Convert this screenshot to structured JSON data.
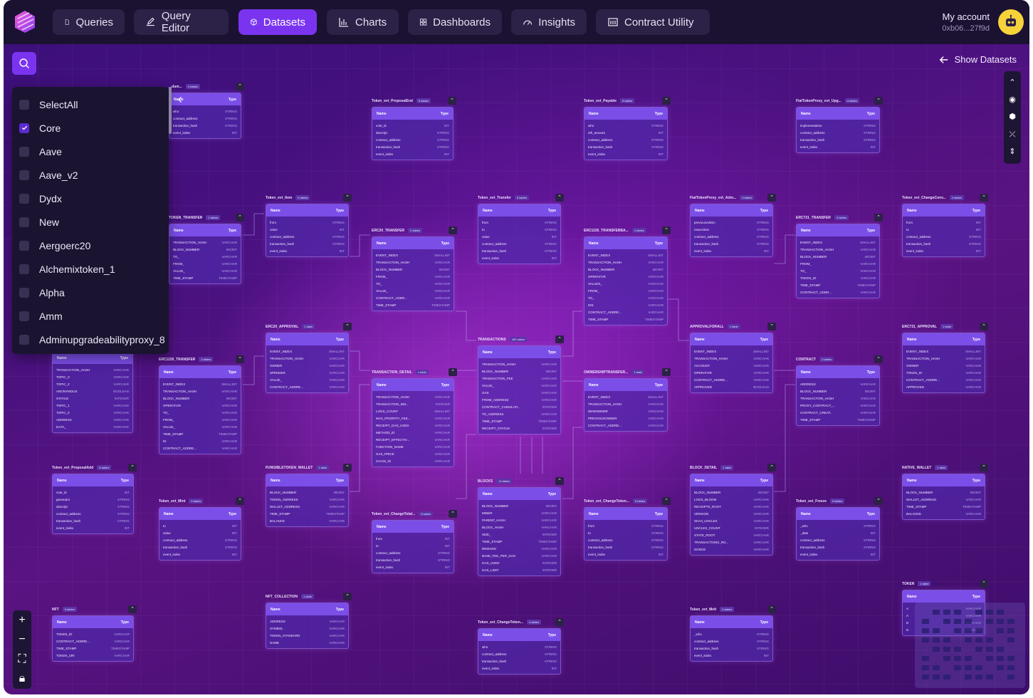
{
  "nav": {
    "tabs": [
      {
        "label": "Queries",
        "icon": "file-icon"
      },
      {
        "label": "Query Editor",
        "icon": "edit-icon"
      },
      {
        "label": "Datasets",
        "icon": "cube-icon",
        "active": true
      },
      {
        "label": "Charts",
        "icon": "bar-chart-icon"
      },
      {
        "label": "Dashboards",
        "icon": "grid-icon"
      },
      {
        "label": "Insights",
        "icon": "gauge-icon"
      },
      {
        "label": "Contract Utility",
        "icon": "contract-icon"
      }
    ],
    "account_label": "My account",
    "account_address": "0xb06...27f9d"
  },
  "filter": {
    "items": [
      {
        "label": "SelectAll",
        "checked": false
      },
      {
        "label": "Core",
        "checked": true
      },
      {
        "label": "Aave",
        "checked": false
      },
      {
        "label": "Aave_v2",
        "checked": false
      },
      {
        "label": "Dydx",
        "checked": false
      },
      {
        "label": "New",
        "checked": false
      },
      {
        "label": "Aergoerc20",
        "checked": false
      },
      {
        "label": "Alchemixtoken_1",
        "checked": false
      },
      {
        "label": "Alpha",
        "checked": false
      },
      {
        "label": "Amm",
        "checked": false
      },
      {
        "label": "Adminupgradeabilityproxy_8",
        "checked": false
      }
    ]
  },
  "show_datasets_label": "Show Datasets",
  "table_header": {
    "name": "Name",
    "type": "Type"
  },
  "tables": [
    {
      "id": "t1",
      "title": "Token_evt_ProposalEnd",
      "count": "5 tables",
      "rows": [
        [
          "vote_id",
          "INT"
        ],
        [
          "descript",
          "STRING"
        ],
        [
          "contract_address",
          "STRING"
        ],
        [
          "transaction_hash",
          "STRING"
        ],
        [
          "event_index",
          "INT"
        ]
      ]
    },
    {
      "id": "t2",
      "title": "Token_evt_Payable",
      "count": "5 tables",
      "rows": [
        [
          "who",
          "STRING"
        ],
        [
          "eth_amount",
          "INT"
        ],
        [
          "contract_address",
          "STRING"
        ],
        [
          "transaction_hash",
          "STRING"
        ],
        [
          "event_index",
          "INT"
        ]
      ]
    },
    {
      "id": "t3",
      "title": "FiatTokenProxy_evt_Upg...",
      "count": "4 tables",
      "rows": [
        [
          "implementation",
          "STRING"
        ],
        [
          "contract_address",
          "STRING"
        ],
        [
          "transaction_hash",
          "STRING"
        ],
        [
          "event_index",
          "INT"
        ]
      ]
    },
    {
      "id": "t4",
      "title": "Token_evt_Item",
      "count": "5 tables",
      "rows": [
        [
          "from",
          "STRING"
        ],
        [
          "value",
          "INT"
        ],
        [
          "contract_address",
          "STRING"
        ],
        [
          "transaction_hash",
          "STRING"
        ],
        [
          "event_index",
          "INT"
        ]
      ]
    },
    {
      "id": "t5",
      "title": "Token_evt_Transfer",
      "count": "6 tables",
      "rows": [
        [
          "from",
          "STRING"
        ],
        [
          "to",
          "STRING"
        ],
        [
          "value",
          "INT"
        ],
        [
          "contract_address",
          "STRING"
        ],
        [
          "transaction_hash",
          "STRING"
        ],
        [
          "event_index",
          "INT"
        ]
      ]
    },
    {
      "id": "t6",
      "title": "FiatTokenProxy_evt_Adm...",
      "count": "3 tables",
      "rows": [
        [
          "previousAdmin",
          "STRING"
        ],
        [
          "newAdmin",
          "STRING"
        ],
        [
          "contract_address",
          "STRING"
        ],
        [
          "transaction_hash",
          "STRING"
        ],
        [
          "event_index",
          "INT"
        ]
      ]
    },
    {
      "id": "t7",
      "title": "Token_evt_ChangeConv...",
      "count": "2 tables",
      "rows": [
        [
          "from",
          "INT"
        ],
        [
          "to",
          "INT"
        ],
        [
          "contract_address",
          "STRING"
        ],
        [
          "transaction_hash",
          "STRING"
        ],
        [
          "event_index",
          "INT"
        ]
      ]
    },
    {
      "id": "t8",
      "title": "TOKEN_TRANSFER",
      "count": "2 tables",
      "rows": [
        [
          "TRANSACTION_HASH",
          "VARCHAR"
        ],
        [
          "BLOCK_NUMBER",
          "BIGINT"
        ],
        [
          "TO_",
          "VARCHAR"
        ],
        [
          "FROM_",
          "VARCHAR"
        ],
        [
          "VALUE_",
          "VARCHAR"
        ],
        [
          "TIME_STAMP",
          "TIMESTAMP"
        ]
      ]
    },
    {
      "id": "t9",
      "title": "ERC20_TRANSFER",
      "count": "2 tables",
      "rows": [
        [
          "EVENT_INDEX",
          "SMALLINT"
        ],
        [
          "TRANSACTION_HASH",
          "VARCHAR"
        ],
        [
          "BLOCK_NUMBER",
          "BIGINT"
        ],
        [
          "FROM_",
          "VARCHAR"
        ],
        [
          "TO_",
          "VARCHAR"
        ],
        [
          "VALUE_",
          "VARCHAR"
        ],
        [
          "CONTRACT_ADDR...",
          "VARCHAR"
        ],
        [
          "TIME_STAMP",
          "TIMESTAMP"
        ]
      ]
    },
    {
      "id": "t10",
      "title": "ERC1155_TRANSFERBA...",
      "count": "2 tables",
      "rows": [
        [
          "EVENT_INDEX",
          "SMALLINT"
        ],
        [
          "TRANSACTION_HASH",
          "VARCHAR"
        ],
        [
          "BLOCK_NUMBER",
          "BIGINT"
        ],
        [
          "OPERATOR",
          "VARCHAR"
        ],
        [
          "VALUES_",
          "VARCHAR"
        ],
        [
          "FROM_",
          "VARCHAR"
        ],
        [
          "TO_",
          "VARCHAR"
        ],
        [
          "IDS",
          "VARCHAR"
        ],
        [
          "CONTRACT_ADDRE...",
          "VARCHAR"
        ],
        [
          "TIME_STAMP",
          "TIMESTAMP"
        ]
      ]
    },
    {
      "id": "t11",
      "title": "ERC721_TRANSFER",
      "count": "2 tables",
      "rows": [
        [
          "EVENT_INDEX",
          "SMALLINT"
        ],
        [
          "TRANSACTION_HASH",
          "VARCHAR"
        ],
        [
          "BLOCK_NUMBER",
          "BIGINT"
        ],
        [
          "FROM_",
          "VARCHAR"
        ],
        [
          "TO_",
          "VARCHAR"
        ],
        [
          "TOKEN_ID",
          "VARCHAR"
        ],
        [
          "TIME_STAMP",
          "TIMESTAMP"
        ],
        [
          "CONTRACT_ADDR...",
          "VARCHAR"
        ]
      ]
    },
    {
      "id": "t12",
      "title": "ERC20_APPROVAL",
      "count": "1 table",
      "rows": [
        [
          "EVENT_INDEX",
          "SMALLINT"
        ],
        [
          "TRANSACTION_HASH",
          "VARCHAR"
        ],
        [
          "OWNER",
          "VARCHAR"
        ],
        [
          "SPENDER",
          "VARCHAR"
        ],
        [
          "VALUE_",
          "VARCHAR"
        ],
        [
          "CONTRACT_ADDRE...",
          "VARCHAR"
        ]
      ]
    },
    {
      "id": "t13",
      "title": "TRANSACTIONS",
      "count": "450 tables",
      "rows": [
        [
          "TRANSACTION_HASH",
          "VARCHAR"
        ],
        [
          "BLOCK_NUMBER",
          "BIGINT"
        ],
        [
          "TRANSACTION_FEE",
          "VARCHAR"
        ],
        [
          "VALUE_",
          "VARCHAR"
        ],
        [
          "GAS",
          "VARCHAR"
        ],
        [
          "FROM_ADDRESS",
          "VARCHAR"
        ],
        [
          "CONTRACT_CUMULATI...",
          "INTEGER"
        ],
        [
          "TO_ADDRESS",
          "VARCHAR"
        ],
        [
          "TIME_STAMP",
          "TIMESTAMP"
        ],
        [
          "RECEIPT_STATUS",
          "INTEGER"
        ]
      ]
    },
    {
      "id": "t14",
      "title": "APPROVALFORALL",
      "count": "1 table",
      "rows": [
        [
          "EVENT_INDEX",
          "SMALLINT"
        ],
        [
          "TRANSACTION_HASH",
          "VARCHAR"
        ],
        [
          "ACCOUNT",
          "VARCHAR"
        ],
        [
          "OPERATOR",
          "VARCHAR"
        ],
        [
          "CONTRACT_ADDRE...",
          "VARCHAR"
        ],
        [
          "APPROVED",
          "BOOLEAN"
        ]
      ]
    },
    {
      "id": "t15",
      "title": "ERC721_APPROVAL",
      "count": "1 table",
      "rows": [
        [
          "EVENT_INDEX",
          "SMALLINT"
        ],
        [
          "TRANSACTION_HASH",
          "VARCHAR"
        ],
        [
          "OWNER",
          "VARCHAR"
        ],
        [
          "TOKEN_ID",
          "VARCHAR"
        ],
        [
          "CONTRACT_ADDRE...",
          "VARCHAR"
        ],
        [
          "APPROVED",
          "VARCHAR"
        ]
      ]
    },
    {
      "id": "t16",
      "title": "ERC1155_TRANSFER",
      "count": "2 tables",
      "rows": [
        [
          "EVENT_INDEX",
          "SMALLINT"
        ],
        [
          "TRANSACTION_HASH",
          "VARCHAR"
        ],
        [
          "BLOCK_NUMBER",
          "BIGINT"
        ],
        [
          "OPERATOR",
          "VARCHAR"
        ],
        [
          "TO_",
          "VARCHAR"
        ],
        [
          "FROM_",
          "VARCHAR"
        ],
        [
          "VALUE_",
          "VARCHAR"
        ],
        [
          "TIME_STAMP",
          "TIMESTAMP"
        ],
        [
          "ID",
          "VARCHAR"
        ],
        [
          "CONTRACT_ADDRE...",
          "VARCHAR"
        ]
      ]
    },
    {
      "id": "t17",
      "title": "TRANSACTION_DETAIL",
      "count": "1 table",
      "rows": [
        [
          "TRANSACTION_HASH",
          "VARCHAR"
        ],
        [
          "TRANSACTION_IND...",
          "INTEGER"
        ],
        [
          "LOGS_COUNT",
          "SMALLINT"
        ],
        [
          "MAX_PRIORITY_FEE...",
          "VARCHAR"
        ],
        [
          "RECEIPT_GAS_USED",
          "VARCHAR"
        ],
        [
          "METHOD_ID",
          "VARCHAR"
        ],
        [
          "RECEIPT_EFFECTIV...",
          "VARCHAR"
        ],
        [
          "FUNCTION_NAME",
          "VARCHAR"
        ],
        [
          "GAS_PRICE",
          "VARCHAR"
        ],
        [
          "CHAIN_ID",
          "VARCHAR"
        ]
      ]
    },
    {
      "id": "t18",
      "title": "OWNERSHIPTRANSFER...",
      "count": "1 table",
      "rows": [
        [
          "EVENT_INDEX",
          "SMALLINT"
        ],
        [
          "TRANSACTION_HASH",
          "VARCHAR"
        ],
        [
          "NEWOWNER",
          "VARCHAR"
        ],
        [
          "PREVIOUSOWNER",
          "VARCHAR"
        ],
        [
          "CONTRACT_ADDRE...",
          "VARCHAR"
        ]
      ]
    },
    {
      "id": "t19",
      "title": "CONTRACT",
      "count": "2 tables",
      "rows": [
        [
          "ADDRESS",
          "VARCHAR"
        ],
        [
          "BLOCK_NUMBER",
          "BIGINT"
        ],
        [
          "TRANSACTION_HASH",
          "VARCHAR"
        ],
        [
          "PROXY_CONTRACT_...",
          "VARCHAR"
        ],
        [
          "CONTRACT_CREAT...",
          "VARCHAR"
        ],
        [
          "TIME_STAMP",
          "TIMESTAMP"
        ]
      ]
    },
    {
      "id": "t20",
      "title": "",
      "count": "",
      "rows": [
        [
          "TRANSACTION_HASH",
          "VARCHAR"
        ],
        [
          "TOPIC_3",
          "VARCHAR"
        ],
        [
          "TOPIC_2",
          "VARCHAR"
        ],
        [
          "ANONYMOUS",
          "BOOLEAN"
        ],
        [
          "STATUS",
          "INTEGER"
        ],
        [
          "TOPIC_1",
          "VARCHAR"
        ],
        [
          "TOPIC_0",
          "VARCHAR"
        ],
        [
          "ADDRESS",
          "VARCHAR"
        ],
        [
          "DATA_",
          "VARCHAR"
        ]
      ]
    },
    {
      "id": "t21",
      "title": "Token_evt_ProposalAdd",
      "count": "6 tables",
      "rows": [
        [
          "vote_id",
          "INT"
        ],
        [
          "generator",
          "STRING"
        ],
        [
          "descript",
          "STRING"
        ],
        [
          "contract_address",
          "STRING"
        ],
        [
          "transaction_hash",
          "STRING"
        ],
        [
          "event_index",
          "INT"
        ]
      ]
    },
    {
      "id": "t22",
      "title": "FUNGIBLETOKEN_WALLET",
      "count": "1 table",
      "rows": [
        [
          "BLOCK_NUMBER",
          "BIGINT"
        ],
        [
          "TOKEN_ADDRESS",
          "VARCHAR"
        ],
        [
          "WALLET_ADDRESS",
          "VARCHAR"
        ],
        [
          "TIME_STAMP",
          "TIMESTAMP"
        ],
        [
          "BALANCE",
          "VARCHAR"
        ]
      ]
    },
    {
      "id": "t23",
      "title": "BLOCK_DETAIL",
      "count": "1 table",
      "rows": [
        [
          "BLOCK_NUMBER",
          "BIGINT"
        ],
        [
          "LOGS_BLOOM",
          "VARCHAR"
        ],
        [
          "RECEIPTS_ROOT",
          "VARCHAR"
        ],
        [
          "VERSION",
          "VARCHAR"
        ],
        [
          "SHA3_UNCLES",
          "VARCHAR"
        ],
        [
          "UNCLES_COUNT",
          "INTEGER"
        ],
        [
          "STATE_ROOT",
          "VARCHAR"
        ],
        [
          "TRANSACTIONS_RO...",
          "VARCHAR"
        ],
        [
          "NONCE",
          "VARCHAR"
        ]
      ]
    },
    {
      "id": "t24",
      "title": "NATIVE_WALLET",
      "count": "1 table",
      "rows": [
        [
          "BLOCK_NUMBER",
          "BIGINT"
        ],
        [
          "WALLET_ADDRESS",
          "VARCHAR"
        ],
        [
          "TIME_STAMP",
          "TIMESTAMP"
        ],
        [
          "BALANCE",
          "VARCHAR"
        ]
      ]
    },
    {
      "id": "t25",
      "title": "Token_evt_Mint",
      "count": "5 tables",
      "rows": [
        [
          "to",
          "INT"
        ],
        [
          "value",
          "INT"
        ],
        [
          "contract_address",
          "STRING"
        ],
        [
          "transaction_hash",
          "STRING"
        ],
        [
          "event_index",
          "INT"
        ]
      ]
    },
    {
      "id": "t26",
      "title": "Token_evt_ChangeTotal...",
      "count": "5 tables",
      "rows": [
        [
          "from",
          "INT"
        ],
        [
          "to",
          "INT"
        ],
        [
          "contract_address",
          "STRING"
        ],
        [
          "transaction_hash",
          "STRING"
        ],
        [
          "event_index",
          "INT"
        ]
      ]
    },
    {
      "id": "t27",
      "title": "BLOCKS",
      "count": "12 tables",
      "rows": [
        [
          "BLOCK_NUMBER",
          "BIGINT"
        ],
        [
          "MINER",
          "VARCHAR"
        ],
        [
          "PARENT_HASH",
          "VARCHAR"
        ],
        [
          "BLOCK_HASH",
          "VARCHAR"
        ],
        [
          "SIZE_",
          "INTEGER"
        ],
        [
          "TIME_STAMP",
          "TIMESTAMP"
        ],
        [
          "REWARD",
          "VARCHAR"
        ],
        [
          "BASE_FEE_PER_GAS",
          "VARCHAR"
        ],
        [
          "GAS_USED",
          "INTEGER"
        ],
        [
          "GAS_LIMIT",
          "INTEGER"
        ]
      ]
    },
    {
      "id": "t28",
      "title": "Token_evt_ChangeToken...",
      "count": "5 tables",
      "rows": [
        [
          "from",
          "STRING"
        ],
        [
          "to",
          "STRING"
        ],
        [
          "contract_address",
          "STRING"
        ],
        [
          "transaction_hash",
          "STRING"
        ],
        [
          "event_index",
          "INT"
        ]
      ]
    },
    {
      "id": "t29",
      "title": "Token_evt_Freeze",
      "count": "5 tables",
      "rows": [
        [
          "_who",
          "STRING"
        ],
        [
          "_date",
          "INT"
        ],
        [
          "contract_address",
          "STRING"
        ],
        [
          "transaction_hash",
          "STRING"
        ],
        [
          "event_index",
          "INT"
        ]
      ]
    },
    {
      "id": "t30",
      "title": "NFT",
      "count": "3 tables",
      "rows": [
        [
          "TOKEN_ID",
          "VARCHAR"
        ],
        [
          "CONTRACT_ADDRE...",
          "VARCHAR"
        ],
        [
          "TIME_STAMP",
          "TIMESTAMP"
        ],
        [
          "TOKEN_URI",
          "VARCHAR"
        ]
      ]
    },
    {
      "id": "t31",
      "title": "NFT_COLLECTION",
      "count": "1 table",
      "rows": [
        [
          "ADDRESS",
          "VARCHAR"
        ],
        [
          "SYMBOL",
          "VARCHAR"
        ],
        [
          "TOKEN_STANDARD",
          "VARCHAR"
        ],
        [
          "NAME",
          "VARCHAR"
        ]
      ]
    },
    {
      "id": "t32",
      "title": "Token_evt_ChangeToken...",
      "count": "4 tables",
      "rows": [
        [
          "who",
          "STRING"
        ],
        [
          "contract_address",
          "STRING"
        ],
        [
          "transaction_hash",
          "STRING"
        ],
        [
          "event_index",
          "INT"
        ]
      ]
    },
    {
      "id": "t33",
      "title": "Token_evt_Melt",
      "count": "4 tables",
      "rows": [
        [
          "_who",
          "STRING"
        ],
        [
          "contract_address",
          "STRING"
        ],
        [
          "transaction_hash",
          "STRING"
        ],
        [
          "event_index",
          "INT"
        ]
      ]
    },
    {
      "id": "t34",
      "title": "TOKEN",
      "count": "1 table",
      "rows": [
        [
          "A",
          "VARCHAR"
        ],
        [
          "A",
          "VARCHAR"
        ],
        [
          "D",
          "VARCHAR"
        ],
        [
          "N",
          "VARCHAR"
        ]
      ]
    },
    {
      "id": "t35",
      "title": "...dum...",
      "count": "4 tables",
      "rows": [
        [
          "who",
          "STRING"
        ],
        [
          "contract_address",
          "STRING"
        ],
        [
          "transaction_hash",
          "STRING"
        ],
        [
          "event_index",
          "INT"
        ]
      ]
    }
  ],
  "colors": {
    "accent": "#7a34f0",
    "nav_bg": "#1b1232",
    "tab_bg": "#2c2146",
    "table_header": "#7b4ee8"
  }
}
